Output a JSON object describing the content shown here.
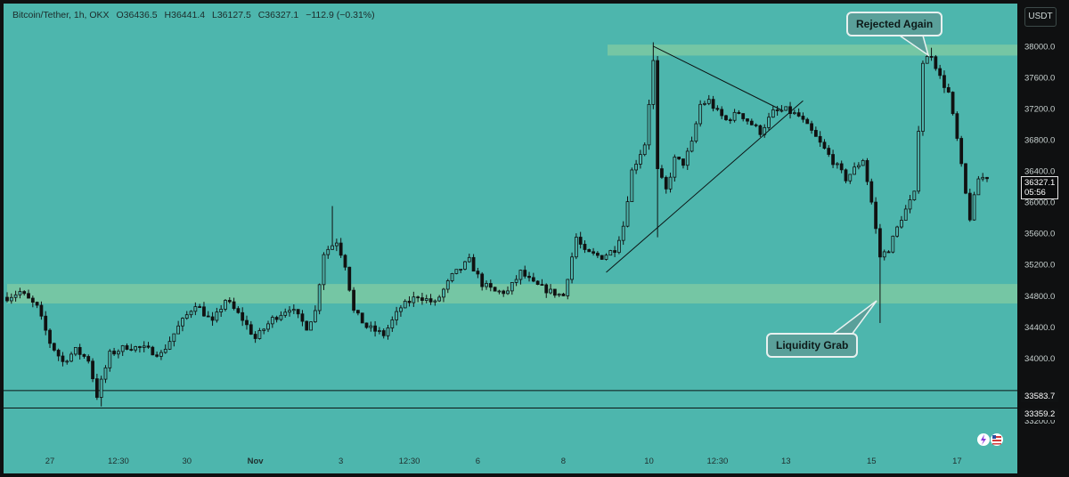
{
  "header": {
    "symbol": "Bitcoin/Tether, 1h, OKX",
    "open": "O36436.5",
    "high": "H36441.4",
    "low": "L36127.5",
    "close": "C36327.1",
    "change": "−112.9 (−0.31%)"
  },
  "currency_button": "USDT",
  "last_price": {
    "value": "36327.1",
    "countdown": "05:56"
  },
  "level_labels": [
    "33583.7",
    "33359.2"
  ],
  "annotations": {
    "top": "Rejected Again",
    "bottom": "Liquidity Grab"
  },
  "colors": {
    "background": "#4db6ad",
    "zone": "#7cc9a2",
    "candle": "#111111",
    "axis_bg": "#0f1011"
  },
  "chart_data": {
    "type": "candlestick",
    "title": "Bitcoin/Tether, 1h, OKX",
    "y_ticks": [
      38000,
      37600,
      37200,
      36800,
      36400,
      36000,
      35600,
      35200,
      34800,
      34400,
      34000,
      33200
    ],
    "y_tick_labels": [
      "38000.0",
      "37600.0",
      "37200.0",
      "36800.0",
      "36400.0",
      "36000.0",
      "35600.0",
      "35200.0",
      "34800.0",
      "34400.0",
      "34000.0",
      "33200.0"
    ],
    "ylim": [
      33000,
      38250
    ],
    "x_ticks": [
      "27",
      "12:30",
      "30",
      "Nov",
      "3",
      "12:30",
      "6",
      "8",
      "10",
      "12:30",
      "13",
      "15",
      "17"
    ],
    "x_tick_index": [
      10,
      26,
      42,
      58,
      78,
      94,
      110,
      130,
      150,
      166,
      182,
      202,
      222
    ],
    "candle_count": 230,
    "zones": [
      {
        "name": "resistance",
        "from": 37880,
        "to": 38020
      },
      {
        "name": "support",
        "from": 34700,
        "to": 34950
      }
    ],
    "horizontal_levels": [
      33583.7,
      33359.2
    ],
    "path_points": [
      [
        0,
        34780
      ],
      [
        3,
        34850
      ],
      [
        7,
        34650
      ],
      [
        10,
        34200
      ],
      [
        13,
        33950
      ],
      [
        16,
        34100
      ],
      [
        19,
        33980
      ],
      [
        21,
        33520
      ],
      [
        24,
        34050
      ],
      [
        28,
        34150
      ],
      [
        32,
        34120
      ],
      [
        36,
        34050
      ],
      [
        40,
        34400
      ],
      [
        44,
        34700
      ],
      [
        48,
        34450
      ],
      [
        51,
        34750
      ],
      [
        55,
        34500
      ],
      [
        58,
        34250
      ],
      [
        62,
        34500
      ],
      [
        66,
        34650
      ],
      [
        70,
        34400
      ],
      [
        72,
        34600
      ],
      [
        74,
        35350
      ],
      [
        77,
        35500
      ],
      [
        79,
        35200
      ],
      [
        81,
        34600
      ],
      [
        84,
        34400
      ],
      [
        88,
        34300
      ],
      [
        92,
        34650
      ],
      [
        96,
        34800
      ],
      [
        100,
        34700
      ],
      [
        104,
        35050
      ],
      [
        108,
        35250
      ],
      [
        111,
        34950
      ],
      [
        114,
        34850
      ],
      [
        117,
        34850
      ],
      [
        120,
        35100
      ],
      [
        123,
        34950
      ],
      [
        127,
        34850
      ],
      [
        130,
        34800
      ],
      [
        133,
        35550
      ],
      [
        135,
        35350
      ],
      [
        139,
        35300
      ],
      [
        142,
        35400
      ],
      [
        144,
        35700
      ],
      [
        146,
        36400
      ],
      [
        149,
        36750
      ],
      [
        151,
        37800
      ],
      [
        152,
        36400
      ],
      [
        154,
        36150
      ],
      [
        156,
        36550
      ],
      [
        158,
        36500
      ],
      [
        160,
        36750
      ],
      [
        162,
        37250
      ],
      [
        164,
        37300
      ],
      [
        166,
        37150
      ],
      [
        168,
        37050
      ],
      [
        171,
        37150
      ],
      [
        174,
        37000
      ],
      [
        176,
        36900
      ],
      [
        179,
        37150
      ],
      [
        182,
        37180
      ],
      [
        185,
        37100
      ],
      [
        188,
        36900
      ],
      [
        192,
        36600
      ],
      [
        196,
        36300
      ],
      [
        200,
        36550
      ],
      [
        202,
        36000
      ],
      [
        204,
        35300
      ],
      [
        206,
        35400
      ],
      [
        209,
        35800
      ],
      [
        212,
        36100
      ],
      [
        214,
        37800
      ],
      [
        216,
        37900
      ],
      [
        218,
        37600
      ],
      [
        220,
        37400
      ],
      [
        222,
        36800
      ],
      [
        224,
        36100
      ],
      [
        225,
        35800
      ],
      [
        227,
        36300
      ],
      [
        229,
        36327
      ]
    ],
    "wick_spikes": [
      {
        "index": 22,
        "low": 33380
      },
      {
        "index": 76,
        "high": 35950
      },
      {
        "index": 151,
        "high": 38050
      },
      {
        "index": 152,
        "low": 35550
      },
      {
        "index": 204,
        "low": 34450
      },
      {
        "index": 216,
        "high": 37980
      }
    ],
    "trendlines": [
      {
        "from": [
          151,
          38000
        ],
        "to": [
          181,
          37180
        ]
      },
      {
        "from": [
          140,
          35100
        ],
        "to": [
          186,
          37300
        ]
      }
    ]
  }
}
